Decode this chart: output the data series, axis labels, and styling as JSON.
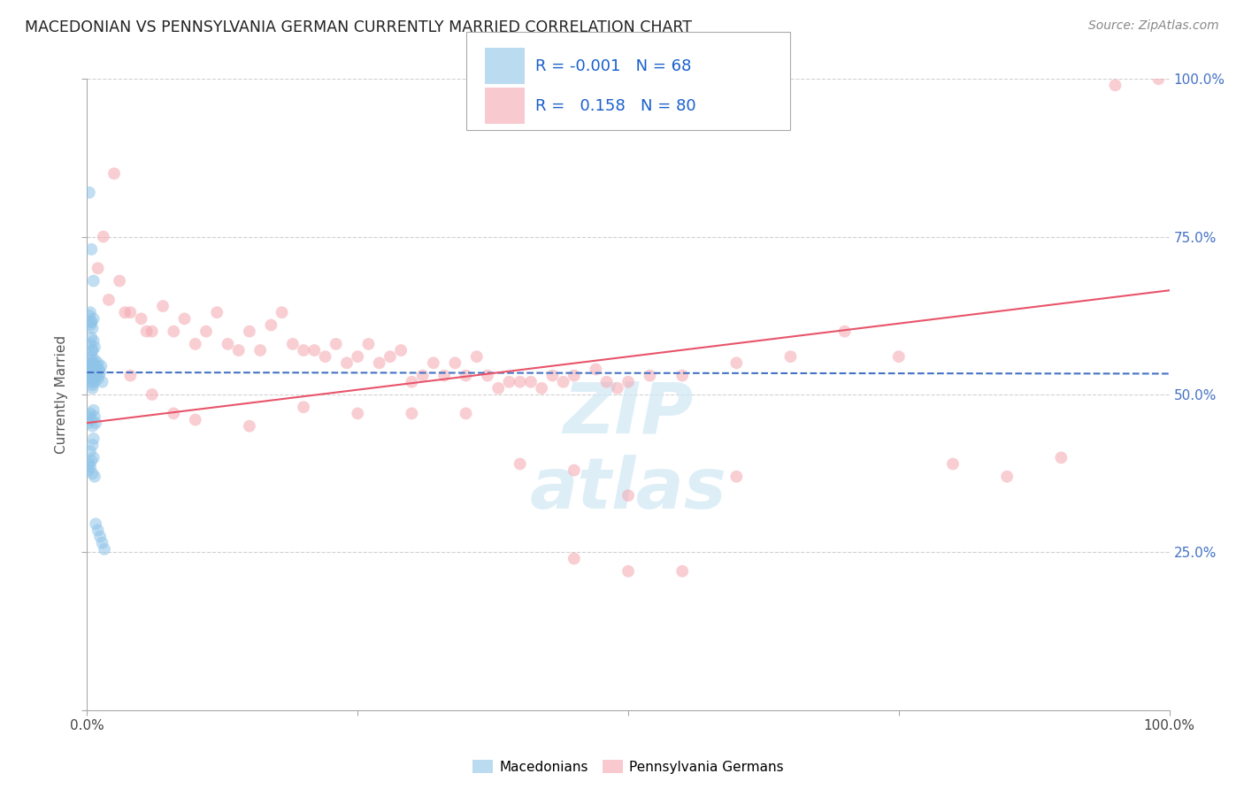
{
  "title": "MACEDONIAN VS PENNSYLVANIA GERMAN CURRENTLY MARRIED CORRELATION CHART",
  "source": "Source: ZipAtlas.com",
  "ylabel": "Currently Married",
  "blue_color": "#8ec4e8",
  "pink_color": "#f4a7b0",
  "blue_line_color": "#4472c4",
  "pink_line_color": "#e8546a",
  "watermark_color": "#d0e8f5",
  "background_color": "#ffffff",
  "grid_color": "#cccccc",
  "legend_R_blue": "-0.001",
  "legend_N_blue": "68",
  "legend_R_pink": "0.158",
  "legend_N_pink": "80",
  "blue_line_intercept": 0.535,
  "blue_line_slope": -0.002,
  "pink_line_intercept": 0.455,
  "pink_line_slope": 0.21,
  "blue_x": [
    0.001,
    0.002,
    0.002,
    0.003,
    0.003,
    0.003,
    0.004,
    0.004,
    0.004,
    0.005,
    0.005,
    0.005,
    0.005,
    0.006,
    0.006,
    0.006,
    0.007,
    0.007,
    0.007,
    0.008,
    0.008,
    0.009,
    0.009,
    0.01,
    0.01,
    0.011,
    0.011,
    0.012,
    0.013,
    0.014,
    0.001,
    0.002,
    0.003,
    0.004,
    0.005,
    0.006,
    0.007,
    0.008,
    0.003,
    0.004,
    0.005,
    0.006,
    0.007,
    0.003,
    0.004,
    0.005,
    0.006,
    0.002,
    0.003,
    0.004,
    0.001,
    0.002,
    0.003,
    0.004,
    0.005,
    0.006,
    0.007,
    0.006,
    0.005,
    0.003,
    0.002,
    0.004,
    0.006,
    0.008,
    0.01,
    0.012,
    0.014,
    0.016
  ],
  "blue_y": [
    0.535,
    0.54,
    0.545,
    0.55,
    0.555,
    0.525,
    0.53,
    0.56,
    0.52,
    0.54,
    0.51,
    0.57,
    0.515,
    0.535,
    0.55,
    0.525,
    0.545,
    0.555,
    0.52,
    0.53,
    0.54,
    0.545,
    0.535,
    0.525,
    0.55,
    0.54,
    0.53,
    0.535,
    0.545,
    0.52,
    0.455,
    0.465,
    0.47,
    0.46,
    0.45,
    0.475,
    0.465,
    0.455,
    0.58,
    0.59,
    0.57,
    0.585,
    0.575,
    0.61,
    0.615,
    0.605,
    0.62,
    0.625,
    0.63,
    0.615,
    0.38,
    0.39,
    0.385,
    0.395,
    0.375,
    0.4,
    0.37,
    0.43,
    0.42,
    0.41,
    0.82,
    0.73,
    0.68,
    0.295,
    0.285,
    0.275,
    0.265,
    0.255
  ],
  "pink_x": [
    0.01,
    0.015,
    0.02,
    0.025,
    0.03,
    0.035,
    0.04,
    0.05,
    0.055,
    0.06,
    0.07,
    0.08,
    0.09,
    0.1,
    0.11,
    0.12,
    0.13,
    0.14,
    0.15,
    0.16,
    0.17,
    0.18,
    0.19,
    0.2,
    0.21,
    0.22,
    0.23,
    0.24,
    0.25,
    0.26,
    0.27,
    0.28,
    0.29,
    0.3,
    0.31,
    0.32,
    0.33,
    0.34,
    0.35,
    0.36,
    0.37,
    0.38,
    0.39,
    0.4,
    0.41,
    0.42,
    0.43,
    0.44,
    0.45,
    0.47,
    0.48,
    0.49,
    0.5,
    0.52,
    0.55,
    0.6,
    0.65,
    0.7,
    0.75,
    0.8,
    0.85,
    0.9,
    0.95,
    0.99,
    0.45,
    0.5,
    0.55,
    0.6,
    0.45,
    0.5,
    0.3,
    0.35,
    0.4,
    0.25,
    0.2,
    0.15,
    0.1,
    0.08,
    0.06,
    0.04
  ],
  "pink_y": [
    0.7,
    0.75,
    0.65,
    0.85,
    0.68,
    0.63,
    0.63,
    0.62,
    0.6,
    0.6,
    0.64,
    0.6,
    0.62,
    0.58,
    0.6,
    0.63,
    0.58,
    0.57,
    0.6,
    0.57,
    0.61,
    0.63,
    0.58,
    0.57,
    0.57,
    0.56,
    0.58,
    0.55,
    0.56,
    0.58,
    0.55,
    0.56,
    0.57,
    0.52,
    0.53,
    0.55,
    0.53,
    0.55,
    0.53,
    0.56,
    0.53,
    0.51,
    0.52,
    0.52,
    0.52,
    0.51,
    0.53,
    0.52,
    0.53,
    0.54,
    0.52,
    0.51,
    0.52,
    0.53,
    0.53,
    0.55,
    0.56,
    0.6,
    0.56,
    0.39,
    0.37,
    0.4,
    0.99,
    1.0,
    0.24,
    0.22,
    0.22,
    0.37,
    0.38,
    0.34,
    0.47,
    0.47,
    0.39,
    0.47,
    0.48,
    0.45,
    0.46,
    0.47,
    0.5,
    0.53
  ]
}
